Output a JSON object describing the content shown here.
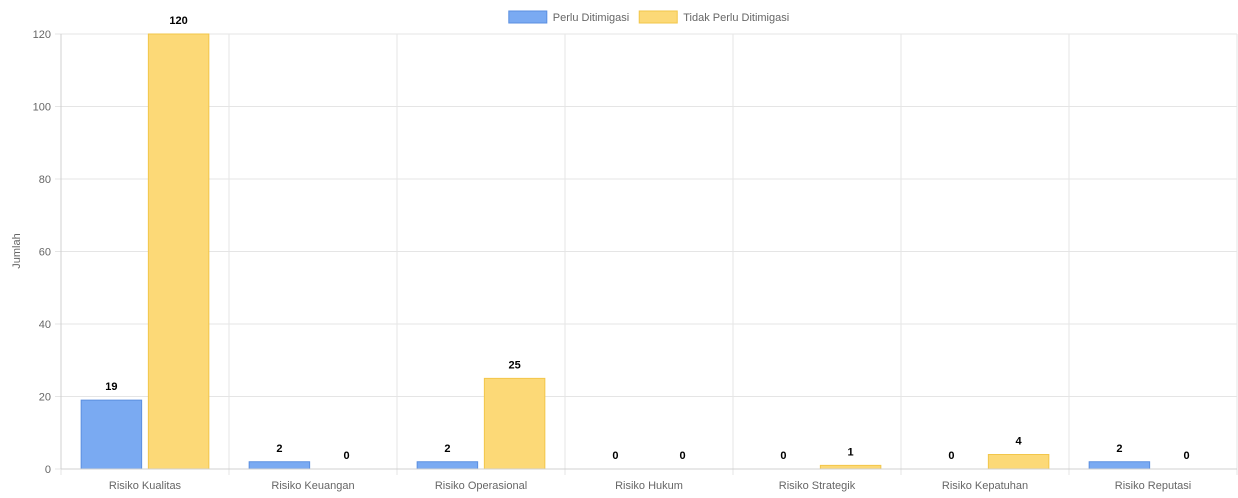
{
  "chart_data": {
    "type": "bar",
    "title": "",
    "xlabel": "",
    "ylabel": "Jumlah",
    "ylim": [
      0,
      120
    ],
    "yticks": [
      0,
      20,
      40,
      60,
      80,
      100,
      120
    ],
    "grid": true,
    "legend_position": "top-center",
    "categories": [
      "Risiko Kualitas",
      "Risiko Keuangan",
      "Risiko Operasional",
      "Risiko Hukum",
      "Risiko Strategik",
      "Risiko Kepatuhan",
      "Risiko Reputasi"
    ],
    "series": [
      {
        "name": "Perlu Ditimigasi",
        "values": [
          19,
          2,
          2,
          0,
          0,
          0,
          2
        ],
        "color": "#7aaaf2",
        "border": "#5b8fe0"
      },
      {
        "name": "Tidak Perlu Ditimigasi",
        "values": [
          120,
          0,
          25,
          0,
          1,
          4,
          0
        ],
        "color": "#fcd977",
        "border": "#f2c64a"
      }
    ]
  }
}
